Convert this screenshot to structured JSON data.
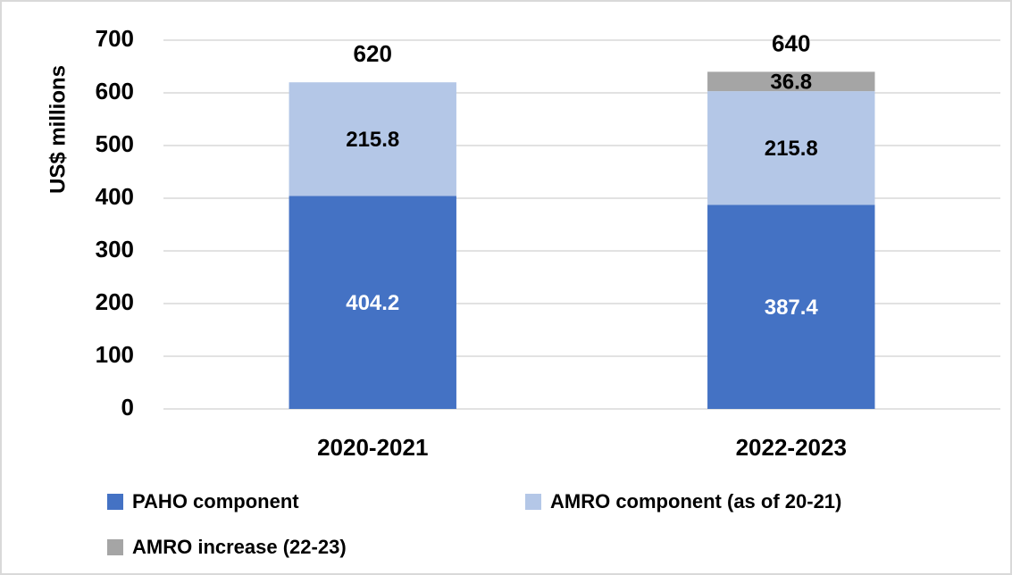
{
  "chart_data": {
    "type": "stacked_bar",
    "y_label": "US$ millions",
    "categories": [
      "2020-2021",
      "2022-2023"
    ],
    "series": [
      {
        "name": "PAHO component",
        "color": "#4472c4",
        "values": [
          404.2,
          387.4
        ]
      },
      {
        "name": "AMRO component (as of 20-21)",
        "color": "#b4c7e7",
        "values": [
          215.8,
          215.8
        ]
      },
      {
        "name": "AMRO increase (22-23)",
        "color": "#a5a5a5",
        "values": [
          null,
          36.8
        ]
      }
    ],
    "totals": [
      620,
      640
    ],
    "ylim": [
      0,
      700
    ],
    "yticks": [
      0,
      100,
      200,
      300,
      400,
      500,
      600,
      700
    ],
    "grid": true
  }
}
